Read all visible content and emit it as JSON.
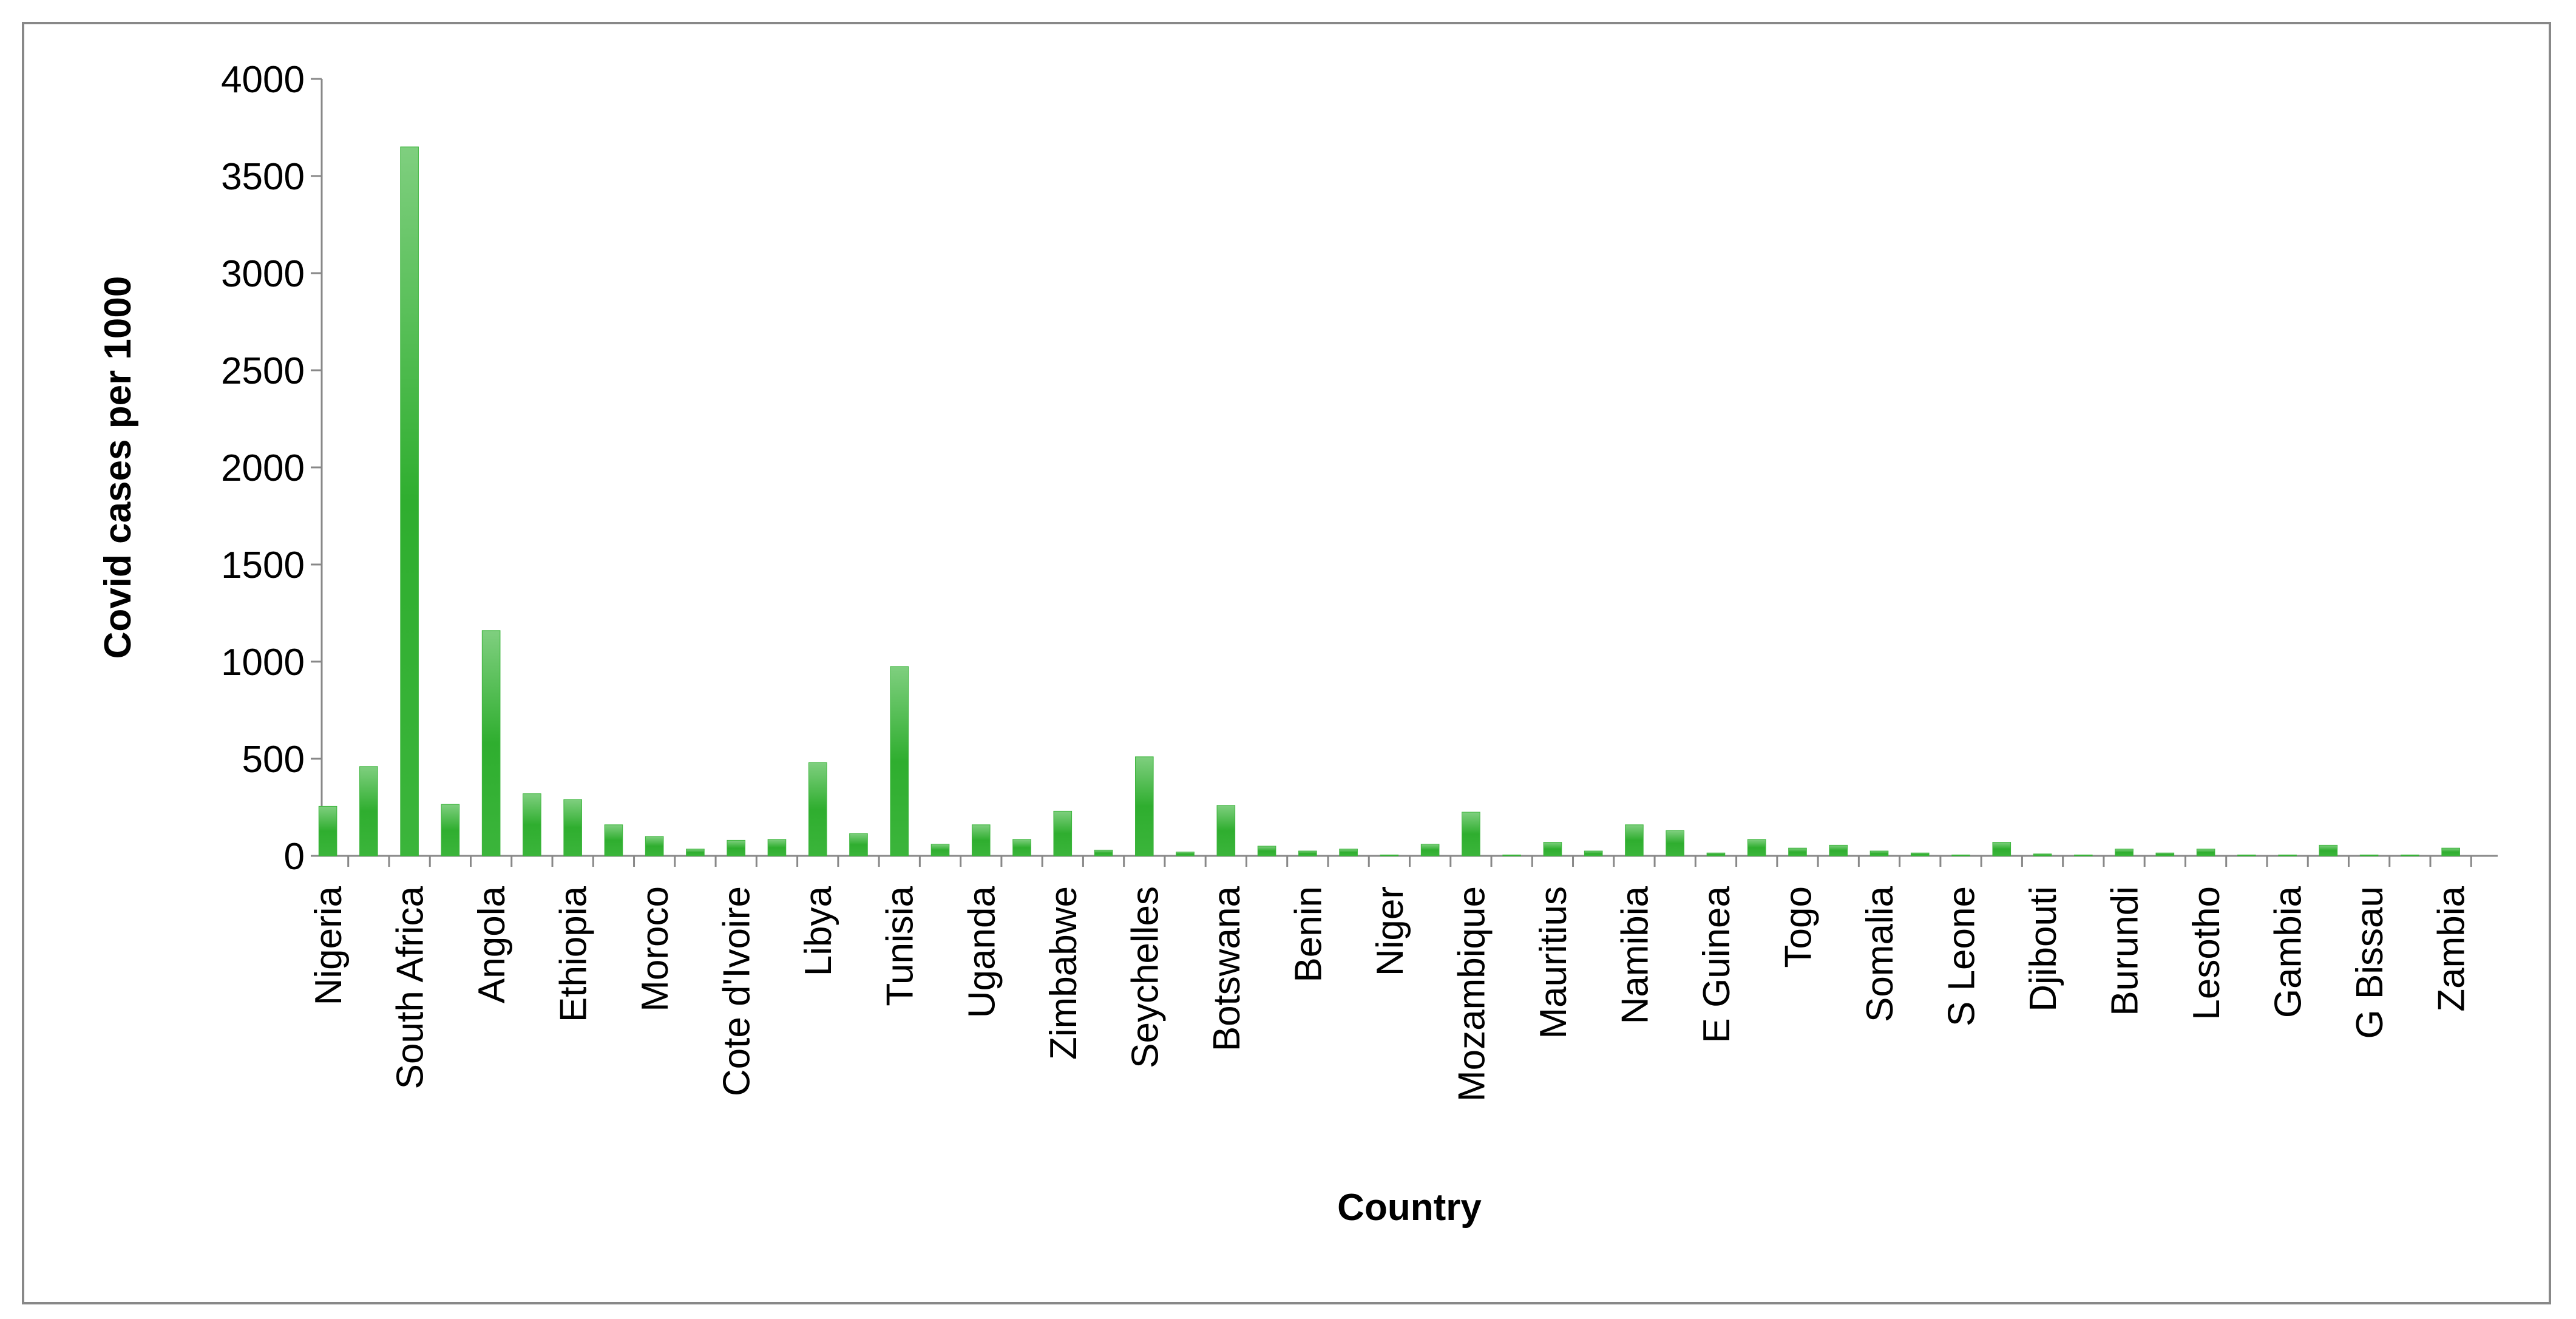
{
  "chart_data": {
    "type": "bar",
    "x_label": "Country",
    "y_label": "Covid cases per 1000",
    "categories": [
      "Nigeria",
      null,
      "South Africa",
      null,
      "Angola",
      null,
      "Ethiopia",
      null,
      "Moroco",
      null,
      "Cote d'Ivoire",
      null,
      "Libya",
      null,
      "Tunisia",
      null,
      "Uganda",
      null,
      "Zimbabwe",
      null,
      "Seychelles",
      null,
      "Botswana",
      null,
      "Benin",
      null,
      "Niger",
      null,
      "Mozambique",
      null,
      "Mauritius",
      null,
      "Namibia",
      null,
      "E Guinea",
      null,
      "Togo",
      null,
      "Somalia",
      null,
      "S Leone",
      null,
      "Djibouti",
      null,
      "Burundi",
      null,
      "Lesotho",
      null,
      "Gambia",
      null,
      "G Bissau",
      null,
      "Zambia"
    ],
    "values": [
      255,
      460,
      3650,
      265,
      1160,
      320,
      290,
      160,
      100,
      35,
      80,
      85,
      480,
      115,
      975,
      60,
      160,
      85,
      230,
      30,
      510,
      20,
      260,
      50,
      25,
      35,
      5,
      60,
      225,
      5,
      70,
      25,
      160,
      130,
      15,
      85,
      40,
      55,
      25,
      15,
      5,
      70,
      10,
      5,
      35,
      15,
      35,
      5,
      5,
      55,
      5,
      5,
      40
    ],
    "color": "#3bb53b",
    "ylim": [
      0,
      4000
    ],
    "yticks": [
      0,
      500,
      1000,
      1500,
      2000,
      2500,
      3000,
      3500,
      4000
    ],
    "grid": false
  }
}
